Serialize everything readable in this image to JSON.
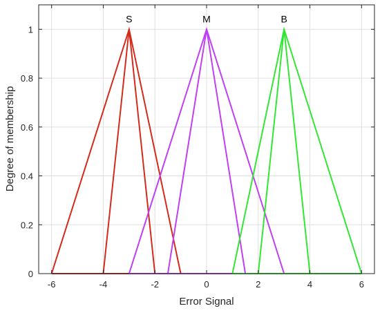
{
  "chart_data": {
    "type": "line",
    "title": "",
    "xlabel": "Error Signal",
    "ylabel": "Degree of membership",
    "xlim": [
      -6.5,
      6.5
    ],
    "ylim": [
      0,
      1.1
    ],
    "xticks": [
      -6,
      -4,
      -2,
      0,
      2,
      4,
      6
    ],
    "yticks": [
      0,
      0.2,
      0.4,
      0.6,
      0.8,
      1
    ],
    "xtick_labels": [
      "-6",
      "-4",
      "-2",
      "0",
      "2",
      "4",
      "6"
    ],
    "ytick_labels": [
      "0",
      "0.2",
      "0.4",
      "0.6",
      "0.8",
      "1"
    ],
    "grid": true,
    "legend": "none",
    "baseline_y": 0,
    "sets": [
      {
        "label": "S",
        "color": "#d42a1a",
        "outer_x": [
          -6,
          -3,
          -1
        ],
        "inner_x": [
          -4,
          -3,
          -2
        ],
        "y": [
          0,
          1,
          0
        ]
      },
      {
        "label": "M",
        "color": "#c03ff2",
        "outer_x": [
          -3,
          0,
          3
        ],
        "inner_x": [
          -1.5,
          0,
          1.5
        ],
        "y": [
          0,
          1,
          0
        ]
      },
      {
        "label": "B",
        "color": "#33e633",
        "outer_x": [
          1,
          3,
          6
        ],
        "inner_x": [
          2,
          3,
          4
        ],
        "y": [
          0,
          1,
          0
        ]
      }
    ]
  }
}
